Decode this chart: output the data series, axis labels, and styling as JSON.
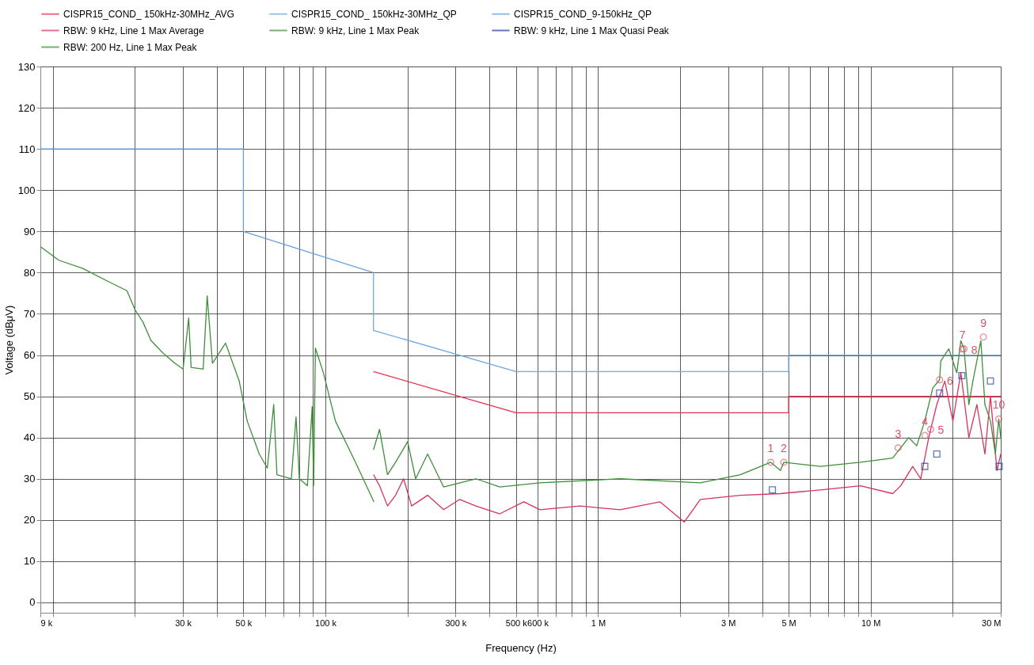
{
  "chart_data": {
    "type": "line",
    "xlabel": "Frequency (Hz)",
    "ylabel": "Voltage (dBμV)",
    "log": "x",
    "grid": true,
    "legend": "top",
    "line_style": "solid",
    "marker": "none",
    "xlim": [
      9000,
      30000000
    ],
    "ylim": [
      -2.5,
      130
    ],
    "xticks": [
      {
        "value": 9000,
        "label": "9 k"
      },
      {
        "value": 10000,
        "label": null
      },
      {
        "value": 20000,
        "label": null
      },
      {
        "value": 30000,
        "label": "30 k"
      },
      {
        "value": 40000,
        "label": null
      },
      {
        "value": 50000,
        "label": "50 k"
      },
      {
        "value": 60000,
        "label": null
      },
      {
        "value": 70000,
        "label": null
      },
      {
        "value": 80000,
        "label": null
      },
      {
        "value": 90000,
        "label": null
      },
      {
        "value": 100000,
        "label": "100 k"
      },
      {
        "value": 200000,
        "label": null
      },
      {
        "value": 300000,
        "label": "300 k"
      },
      {
        "value": 400000,
        "label": null
      },
      {
        "value": 500000,
        "label": "500 k"
      },
      {
        "value": 600000,
        "label": "600 k"
      },
      {
        "value": 700000,
        "label": null
      },
      {
        "value": 800000,
        "label": null
      },
      {
        "value": 900000,
        "label": null
      },
      {
        "value": 1000000,
        "label": "1 M"
      },
      {
        "value": 2000000,
        "label": null
      },
      {
        "value": 3000000,
        "label": "3 M"
      },
      {
        "value": 4000000,
        "label": null
      },
      {
        "value": 5000000,
        "label": "5 M"
      },
      {
        "value": 6000000,
        "label": null
      },
      {
        "value": 7000000,
        "label": null
      },
      {
        "value": 8000000,
        "label": null
      },
      {
        "value": 9000000,
        "label": null
      },
      {
        "value": 10000000,
        "label": "10 M"
      },
      {
        "value": 20000000,
        "label": null
      },
      {
        "value": 30000000,
        "label": "30 M"
      }
    ],
    "yticks": [
      0,
      10,
      20,
      30,
      40,
      50,
      60,
      70,
      80,
      90,
      100,
      110,
      120,
      130
    ],
    "series": [
      {
        "name": "CISPR15_COND_ 150kHz-30MHz_AVG",
        "color": "#e8304a",
        "x": [
          150000,
          500000,
          5000000,
          5000000,
          30000000
        ],
        "values": [
          56,
          46,
          46,
          50,
          50
        ]
      },
      {
        "name": "CISPR15_COND_ 150kHz-30MHz_QP",
        "color": "#72a8e0",
        "x": [
          150000,
          150000,
          500000,
          5000000,
          5000000,
          30000000
        ],
        "values": [
          80,
          66,
          56,
          56,
          60,
          60
        ]
      },
      {
        "name": "CISPR15_COND_9-150kHz_QP",
        "color": "#6aa0dc",
        "x": [
          9000,
          50000,
          50000,
          150000
        ],
        "values": [
          110,
          110,
          90,
          80
        ]
      },
      {
        "name": "RBW: 9 kHz, Line 1 Max Average",
        "color": "#d6335e",
        "x": [
          150000,
          157900,
          168900,
          180800,
          193500,
          207000,
          237000,
          271400,
          310800,
          356000,
          436000,
          534200,
          611900,
          858300,
          1204000,
          1689000,
          2071000,
          2372000,
          3327000,
          4666000,
          6547000,
          9180000,
          12040000,
          12890000,
          14260000,
          15260000,
          16330000,
          17480000,
          18700000,
          20020000,
          21420000,
          22920000,
          24530000,
          26240000,
          27510000,
          29050000,
          30000000
        ],
        "values": [
          31,
          28.3,
          23.4,
          26,
          30,
          23.4,
          26,
          22.5,
          25,
          23.4,
          21.5,
          24.4,
          22.5,
          23.4,
          22.5,
          24.4,
          19.5,
          25,
          26,
          26.4,
          27.3,
          28.3,
          26.4,
          28.3,
          33,
          30,
          40,
          48,
          53.7,
          44,
          55.7,
          40,
          48,
          36,
          50,
          32,
          36
        ]
      },
      {
        "name": "RBW: 9 kHz, Line 1 Max Peak",
        "color": "#3f8f3a",
        "x": [
          150000,
          157900,
          168900,
          180800,
          200200,
          214200,
          237000,
          271400,
          356000,
          436000,
          611900,
          1204000,
          2372000,
          3327000,
          4300000,
          4666000,
          4800000,
          6547000,
          9180000,
          12040000,
          13790000,
          14750000,
          15790000,
          16890000,
          17900000,
          18080000,
          19350000,
          20700000,
          21420000,
          22000000,
          22920000,
          23710000,
          25360000,
          26240000,
          27510000,
          28660000,
          29500000,
          30000000
        ],
        "values": [
          37,
          42,
          31,
          34,
          39,
          30,
          36,
          28,
          30,
          28,
          29,
          30,
          29,
          31,
          34,
          32,
          34,
          33,
          34,
          35,
          40,
          38,
          44,
          52,
          54,
          58.6,
          61.5,
          55.7,
          63.5,
          61.5,
          48,
          53.7,
          63.5,
          48,
          44,
          36,
          44.5,
          40
        ]
      },
      {
        "name": "RBW: 9 kHz, Line 1 Max Quasi Peak",
        "type": "scatter",
        "marker": "square",
        "color": "#1f3f9f",
        "x": [
          4360000,
          15790000,
          17480000,
          17900000,
          21600000,
          27500000,
          29600000
        ],
        "values": [
          27.3,
          33,
          36,
          50.8,
          55,
          53.7,
          33
        ]
      },
      {
        "name": "RBW: 200 Hz, Line 1 Max Peak",
        "color": "#3f8f3a",
        "x": [
          9000,
          10520,
          12890,
          15790,
          18700,
          20020,
          21410,
          22910,
          25360,
          28080,
          30040,
          31500,
          32150,
          35590,
          36820,
          38500,
          40750,
          43010,
          48260,
          51640,
          57180,
          61190,
          64590,
          66380,
          74960,
          78000,
          80220,
          85830,
          89400,
          90500,
          91850,
          98280,
          108800,
          128900,
          150600
        ],
        "values": [
          86.3,
          83,
          81,
          78,
          75.6,
          71,
          68,
          63.5,
          60.5,
          58,
          56.6,
          69,
          57,
          56.6,
          74.4,
          58,
          60.5,
          62.9,
          53.7,
          44,
          36,
          32.6,
          48,
          31,
          30,
          45,
          30,
          28.3,
          47.5,
          28.3,
          61.7,
          55.7,
          44,
          34,
          24.4
        ]
      }
    ],
    "annotations": [
      {
        "text": "1",
        "x": 4300000,
        "y": 34
      },
      {
        "text": "2",
        "x": 4800000,
        "y": 34
      },
      {
        "text": "3",
        "x": 12600000,
        "y": 37.5
      },
      {
        "text": "4",
        "x": 15800000,
        "y": 40.5
      },
      {
        "text": "5",
        "x": 16600000,
        "y": 42
      },
      {
        "text": "6",
        "x": 17900000,
        "y": 54
      },
      {
        "text": "7",
        "x": 21700000,
        "y": 61.5
      },
      {
        "text": "8",
        "x": 22000000,
        "y": 61.5
      },
      {
        "text": "9",
        "x": 25900000,
        "y": 64.4
      },
      {
        "text": "10",
        "x": 29500000,
        "y": 44.5
      }
    ]
  }
}
